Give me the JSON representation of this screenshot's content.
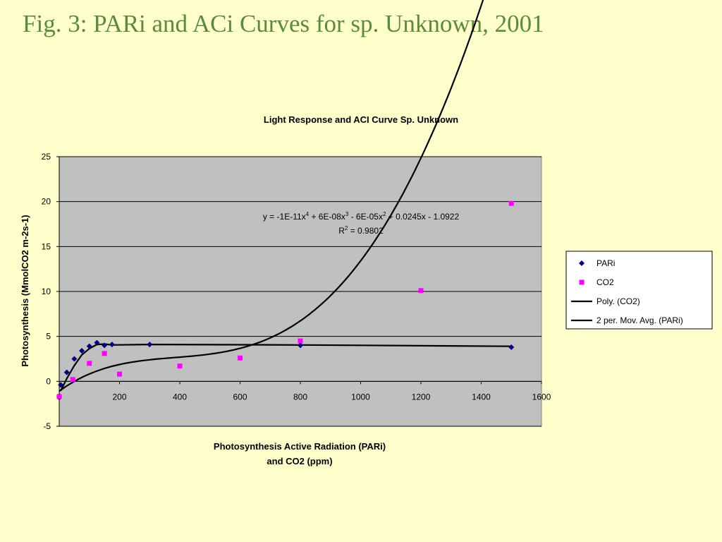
{
  "slide_title": "Fig. 3: PARi and ACi Curves for sp. Unknown, 2001",
  "chart_data": {
    "type": "scatter",
    "title": "Light Response and ACI Curve Sp. Unknown",
    "xlabel_lines": [
      "Photosynthesis Active Radiation (PARi)",
      "and CO2 (ppm)"
    ],
    "ylabel": "Photosynthesis (MmolCO2 m-2s-1)",
    "xlim": [
      0,
      1600
    ],
    "ylim": [
      -5,
      25
    ],
    "x_ticks": [
      "0",
      "200",
      "400",
      "600",
      "800",
      "1000",
      "1200",
      "1400",
      "1600"
    ],
    "y_ticks": [
      "-5",
      "0",
      "5",
      "10",
      "15",
      "20",
      "25"
    ],
    "grid": "horizontal",
    "plot_background": "#c0c0c0",
    "legend_position": "right",
    "series": [
      {
        "name": "PARi",
        "marker": "diamond",
        "color": "#000080",
        "x": [
          0,
          5,
          25,
          50,
          75,
          100,
          125,
          150,
          175,
          300,
          800,
          1500
        ],
        "y": [
          -1.7,
          -0.4,
          1.0,
          2.5,
          3.4,
          3.9,
          4.3,
          4.0,
          4.1,
          4.1,
          4.0,
          3.8
        ]
      },
      {
        "name": "CO2",
        "marker": "square",
        "color": "#ff00ff",
        "x": [
          0,
          45,
          100,
          150,
          200,
          400,
          600,
          800,
          1200,
          1500
        ],
        "y": [
          -1.7,
          0.2,
          2.0,
          3.1,
          0.8,
          1.7,
          2.6,
          4.5,
          10.1,
          19.8
        ]
      }
    ],
    "trendlines": [
      {
        "name": "Poly. (CO2)",
        "kind": "polynomial",
        "coefficients_high_to_low": [
          -1e-11,
          6e-08,
          -6e-05,
          0.0245,
          -1.0922
        ],
        "x_range": [
          0,
          1500
        ],
        "color": "#000000"
      },
      {
        "name": "2 per. Mov. Avg. (PARi)",
        "kind": "moving_average",
        "period": 2,
        "color": "#000000"
      }
    ],
    "annotation": {
      "equation_parts": [
        "y = -1E-11x",
        "4",
        " + 6E-08x",
        "3",
        " - 6E-05x",
        "2",
        " + 0.0245x - 1.0922"
      ],
      "r2_parts": [
        "R",
        "2",
        " = 0.9802"
      ]
    }
  }
}
